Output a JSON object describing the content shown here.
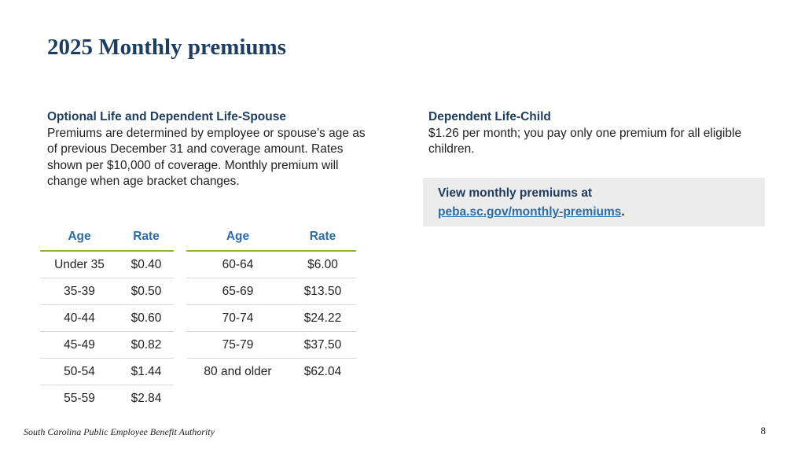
{
  "title": "2025 Monthly premiums",
  "optional_life": {
    "heading": "Optional Life and Dependent Life-Spouse",
    "body": "Premiums are determined by employee or spouse’s age as of previous December 31 and coverage amount. Rates shown per $10,000 of coverage. Monthly premium will change when age bracket changes."
  },
  "dependent_child": {
    "heading": "Dependent Life-Child",
    "body": "$1.26 per month; you pay only one premium for all eligible children."
  },
  "callout": {
    "lead": "View monthly premiums at",
    "link_text": "peba.sc.gov/monthly-premiums",
    "trailing": "."
  },
  "table_left": {
    "headers": [
      "Age",
      "Rate"
    ],
    "rows": [
      [
        "Under 35",
        "$0.40"
      ],
      [
        "35-39",
        "$0.50"
      ],
      [
        "40-44",
        "$0.60"
      ],
      [
        "45-49",
        "$0.82"
      ],
      [
        "50-54",
        "$1.44"
      ],
      [
        "55-59",
        "$2.84"
      ]
    ]
  },
  "table_right": {
    "headers": [
      "Age",
      "Rate"
    ],
    "rows": [
      [
        "60-64",
        "$6.00"
      ],
      [
        "65-69",
        "$13.50"
      ],
      [
        "70-74",
        "$24.22"
      ],
      [
        "75-79",
        "$37.50"
      ],
      [
        "80 and older",
        "$62.04"
      ]
    ]
  },
  "footer": "South Carolina Public Employee Benefit Authority",
  "page_number": "8",
  "colors": {
    "title": "#1f3e5f",
    "header_text": "#2e6ca4",
    "header_rule": "#8db33a",
    "callout_bg": "#ececec"
  }
}
